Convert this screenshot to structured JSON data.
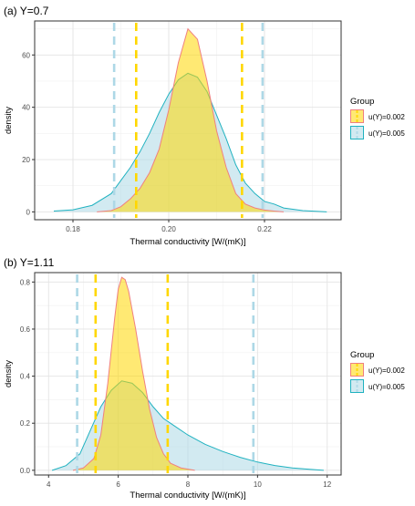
{
  "chart_data": [
    {
      "type": "area",
      "title": "(a) Y=0.7",
      "xlabel": "Thermal conductivity [W/(mK)]",
      "ylabel": "density",
      "xlim": [
        0.172,
        0.236
      ],
      "ylim": [
        -3,
        73
      ],
      "xticks": [
        0.18,
        0.2,
        0.22
      ],
      "xtick_labels": [
        "0.18",
        "0.20",
        "0.22"
      ],
      "yticks": [
        0,
        20,
        40,
        60
      ],
      "ytick_labels": [
        "0",
        "20",
        "40",
        "60"
      ],
      "grid": true,
      "legend_placement": "right",
      "legend_title": "Group",
      "series": [
        {
          "name": "u(Y)=0.002",
          "fill": "#FFD700",
          "line": "#F08080",
          "x": [
            0.185,
            0.188,
            0.19,
            0.192,
            0.194,
            0.196,
            0.198,
            0.2,
            0.202,
            0.204,
            0.206,
            0.208,
            0.21,
            0.212,
            0.214,
            0.216,
            0.218,
            0.22,
            0.222,
            0.224
          ],
          "y": [
            0,
            0.5,
            2,
            5,
            9,
            15,
            24,
            39,
            57,
            70,
            66,
            50,
            31,
            17,
            7,
            3,
            1.5,
            0.7,
            0.3,
            0
          ]
        },
        {
          "name": "u(Y)=0.005",
          "fill": "#ADD8E6",
          "line": "#20B2C0",
          "x": [
            0.176,
            0.18,
            0.184,
            0.188,
            0.19,
            0.192,
            0.194,
            0.196,
            0.198,
            0.2,
            0.202,
            0.204,
            0.206,
            0.208,
            0.21,
            0.212,
            0.214,
            0.216,
            0.218,
            0.22,
            0.222,
            0.224,
            0.228,
            0.233
          ],
          "y": [
            0.3,
            0.8,
            2.5,
            7,
            12,
            17,
            23,
            30,
            38,
            45,
            50.5,
            53,
            51.5,
            46,
            37,
            28,
            18,
            11,
            7,
            4,
            3,
            1.5,
            0.5,
            0
          ]
        }
      ],
      "vlines": [
        {
          "group": "u(Y)=0.005",
          "color": "#ADD8E6",
          "x": [
            0.1886,
            0.2196
          ]
        },
        {
          "group": "u(Y)=0.002",
          "color": "#FFD700",
          "x": [
            0.1932,
            0.2153
          ]
        }
      ]
    },
    {
      "type": "area",
      "title": "(b) Y=1.11",
      "xlabel": "Thermal conductivity [W/(mK)]",
      "ylabel": "density",
      "xlim": [
        3.6,
        12.4
      ],
      "ylim": [
        -0.02,
        0.84
      ],
      "xticks": [
        4,
        6,
        8,
        10,
        12
      ],
      "xtick_labels": [
        "4",
        "6",
        "8",
        "10",
        "12"
      ],
      "yticks": [
        0.0,
        0.2,
        0.4,
        0.6,
        0.8
      ],
      "ytick_labels": [
        "0.0",
        "0.2",
        "0.4",
        "0.6",
        "0.8"
      ],
      "grid": true,
      "legend_placement": "right",
      "legend_title": "Group",
      "series": [
        {
          "name": "u(Y)=0.002",
          "fill": "#FFD700",
          "line": "#F08080",
          "x": [
            4.7,
            5.0,
            5.3,
            5.5,
            5.7,
            5.9,
            6.0,
            6.1,
            6.2,
            6.3,
            6.5,
            6.7,
            6.9,
            7.1,
            7.3,
            7.5,
            7.8,
            8.2
          ],
          "y": [
            0,
            0.01,
            0.05,
            0.15,
            0.37,
            0.65,
            0.77,
            0.82,
            0.81,
            0.76,
            0.6,
            0.42,
            0.26,
            0.14,
            0.07,
            0.03,
            0.01,
            0
          ]
        },
        {
          "name": "u(Y)=0.005",
          "fill": "#ADD8E6",
          "line": "#20B2C0",
          "x": [
            4.1,
            4.5,
            4.9,
            5.2,
            5.5,
            5.8,
            6.1,
            6.4,
            6.7,
            7.0,
            7.3,
            7.6,
            8.0,
            8.5,
            9.0,
            9.5,
            10.0,
            10.5,
            11.0,
            11.5,
            11.9
          ],
          "y": [
            0,
            0.02,
            0.07,
            0.17,
            0.27,
            0.34,
            0.38,
            0.37,
            0.33,
            0.27,
            0.22,
            0.19,
            0.15,
            0.11,
            0.08,
            0.055,
            0.035,
            0.02,
            0.01,
            0.004,
            0
          ]
        }
      ],
      "vlines": [
        {
          "group": "u(Y)=0.005",
          "color": "#ADD8E6",
          "x": [
            4.82,
            9.88
          ]
        },
        {
          "group": "u(Y)=0.002",
          "color": "#FFD700",
          "x": [
            5.35,
            7.42
          ]
        }
      ]
    }
  ]
}
